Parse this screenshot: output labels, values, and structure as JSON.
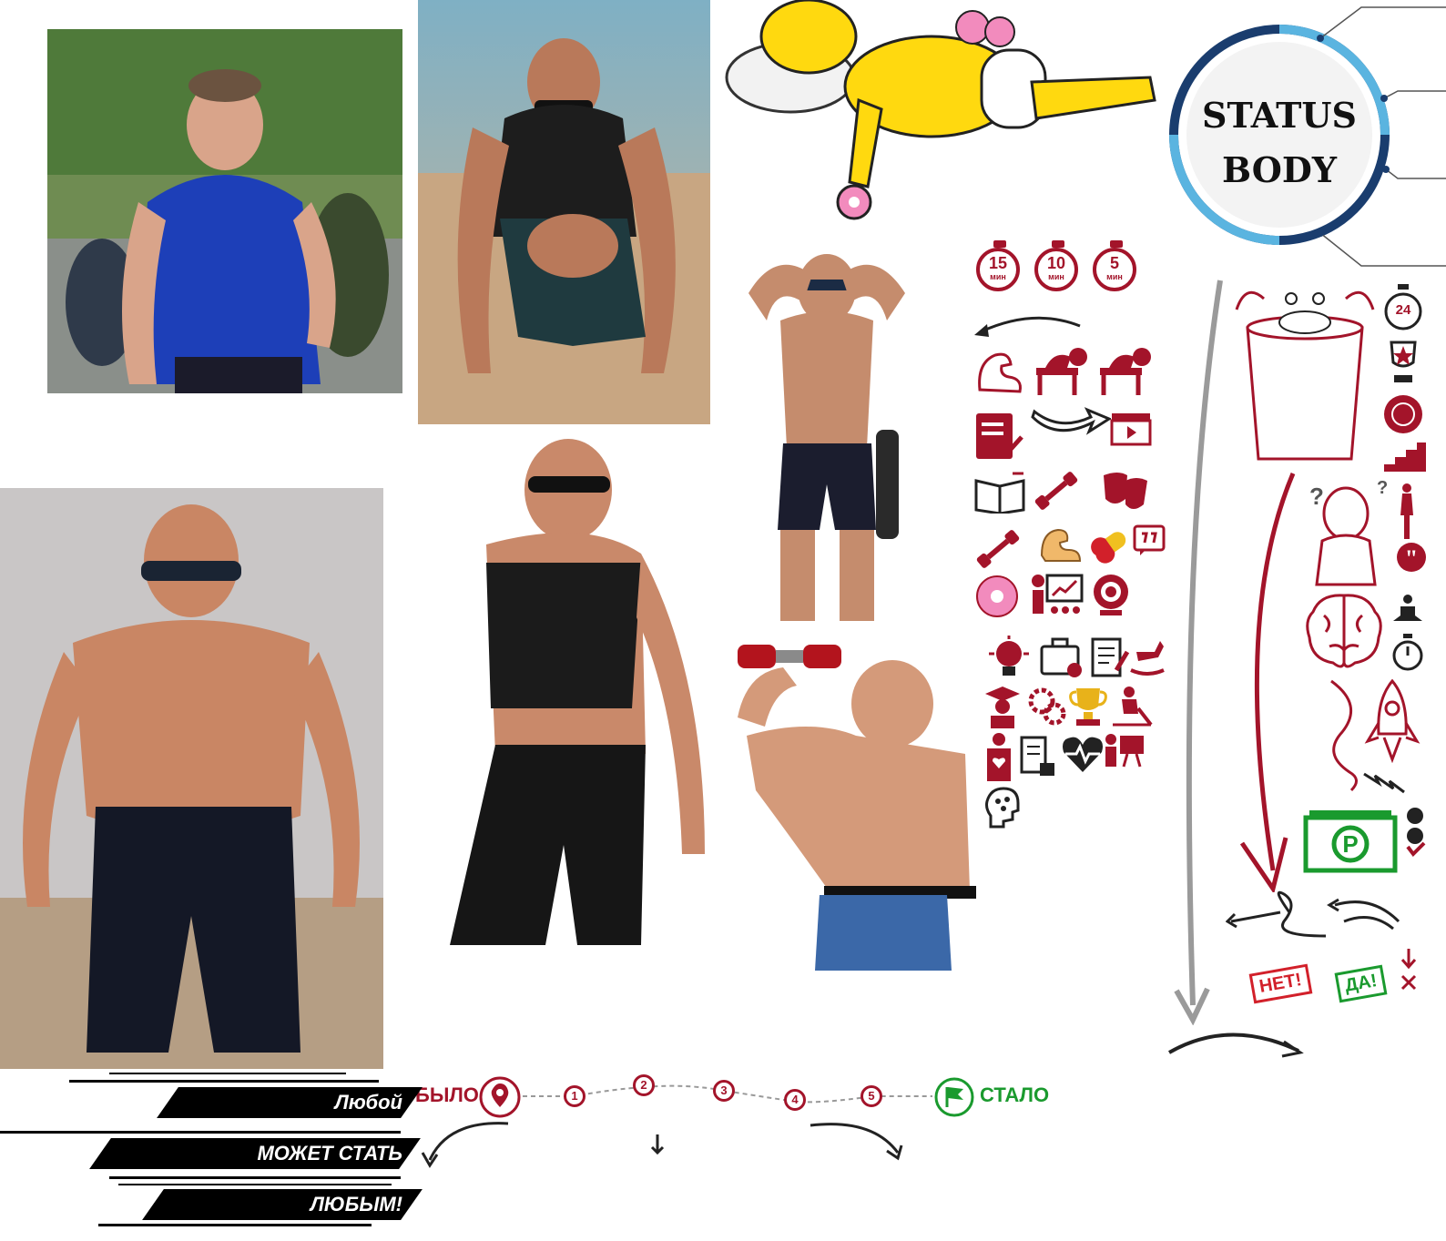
{
  "logo": {
    "line1": "STATUS",
    "line2": "BODY"
  },
  "timers": [
    {
      "value": "15",
      "unit": "мин"
    },
    {
      "value": "10",
      "unit": "мин"
    },
    {
      "value": "5",
      "unit": "мин"
    }
  ],
  "badge_24": "24",
  "progress": {
    "start_label": "БЫЛО",
    "end_label": "СТАЛО",
    "steps": [
      "1",
      "2",
      "3",
      "4",
      "5"
    ]
  },
  "slogan": {
    "line1": "Любой",
    "line2": "МОЖЕТ СТАТЬ",
    "line3": "ЛЮБЫМ!"
  },
  "stamps": {
    "no": "НЕТ!",
    "yes": "ДА!"
  },
  "colors": {
    "accent_red": "#a3142a",
    "accent_green": "#1a9a2e",
    "logo_ring": "#1a3d6e",
    "logo_ring_light": "#5ab4e0"
  }
}
